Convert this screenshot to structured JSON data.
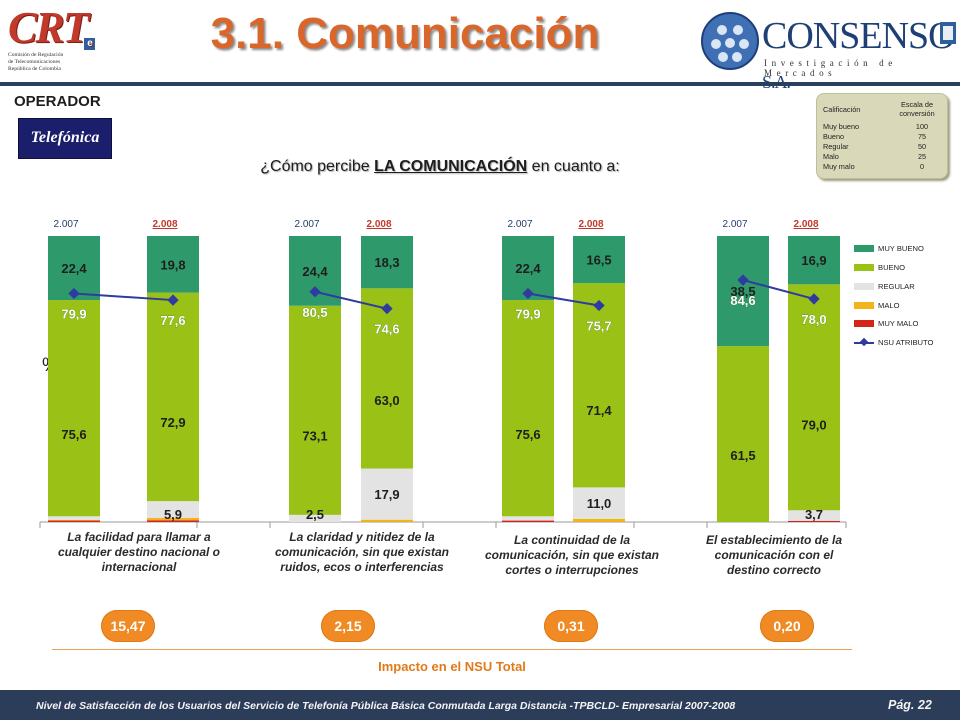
{
  "header": {
    "title": "3.1. Comunicación",
    "crt_logo": {
      "mark": "CRT",
      "mark_e": "e",
      "line1": "Comisión de Regulación",
      "line2": "de Telecomunicaciones",
      "line3": "República de Colombia"
    },
    "consenso_logo": {
      "name": "CONSENSO",
      "suffix": "S.A.",
      "tagline": "Investigación de Mercados"
    }
  },
  "operator": {
    "label": "OPERADOR",
    "logo_text": "Telefónica"
  },
  "scale_table": {
    "col1": "Calificación",
    "col2": "Escala de conversión",
    "rows": [
      {
        "label": "Muy bueno",
        "value": "100"
      },
      {
        "label": "Bueno",
        "value": "75"
      },
      {
        "label": "Regular",
        "value": "50"
      },
      {
        "label": "Malo",
        "value": "25"
      },
      {
        "label": "Muy malo",
        "value": "0"
      }
    ]
  },
  "question": {
    "prefix": "¿Cómo percibe ",
    "emphasis": "LA COMUNICACIÓN",
    "suffix": " en cuanto a:"
  },
  "axis_unit": "%",
  "colors": {
    "muy_bueno": "#2e9a6b",
    "bueno": "#9ac216",
    "regular": "#e3e3e3",
    "malo": "#f2b418",
    "muy_malo": "#d1261a",
    "nsu": "#2f3ba0",
    "impact": "#f08a25"
  },
  "chart_data": {
    "type": "bar",
    "stacked": true,
    "ylim": [
      0,
      100
    ],
    "groups": [
      {
        "category": "La facilidad para llamar a cualquier destino nacional o internacional",
        "years": [
          {
            "year": "2.007",
            "muy_bueno": 22.4,
            "bueno": 75.6,
            "regular": 1.3,
            "malo": 0.2,
            "muy_malo": 0.5,
            "nsu": 79.9,
            "labels": {
              "muy_bueno": "22,4",
              "bueno": "75,6",
              "regular": ""
            },
            "nsu_label": "79,9"
          },
          {
            "year": "2.008",
            "muy_bueno": 19.8,
            "bueno": 72.9,
            "regular": 5.9,
            "malo": 0.8,
            "muy_malo": 0.6,
            "nsu": 77.6,
            "labels": {
              "muy_bueno": "19,8",
              "bueno": "72,9",
              "regular": "5,9"
            },
            "nsu_label": "77,6"
          }
        ],
        "impact": "15,47"
      },
      {
        "category": "La claridad y nitidez de la comunicación, sin que existan ruidos, ecos o interferencias",
        "years": [
          {
            "year": "2.007",
            "muy_bueno": 24.4,
            "bueno": 73.1,
            "regular": 2.5,
            "malo": 0.0,
            "muy_malo": 0.0,
            "nsu": 80.5,
            "labels": {
              "muy_bueno": "24,4",
              "bueno": "73,1",
              "regular": "2,5"
            },
            "nsu_label": "80,5"
          },
          {
            "year": "2.008",
            "muy_bueno": 18.3,
            "bueno": 63.0,
            "regular": 17.9,
            "malo": 0.8,
            "muy_malo": 0.0,
            "nsu": 74.6,
            "labels": {
              "muy_bueno": "18,3",
              "bueno": "63,0",
              "regular": "17,9"
            },
            "nsu_label": "74,6"
          }
        ],
        "impact": "2,15"
      },
      {
        "category": "La continuidad de la comunicación, sin que existan cortes o interrupciones",
        "years": [
          {
            "year": "2.007",
            "muy_bueno": 22.4,
            "bueno": 75.6,
            "regular": 1.5,
            "malo": 0.0,
            "muy_malo": 0.5,
            "nsu": 79.9,
            "labels": {
              "muy_bueno": "22,4",
              "bueno": "75,6",
              "regular": ""
            },
            "nsu_label": "79,9"
          },
          {
            "year": "2.008",
            "muy_bueno": 16.5,
            "bueno": 71.4,
            "regular": 11.0,
            "malo": 1.1,
            "muy_malo": 0.0,
            "nsu": 75.7,
            "labels": {
              "muy_bueno": "16,5",
              "bueno": "71,4",
              "regular": "11,0"
            },
            "nsu_label": "75,7"
          }
        ],
        "impact": "0,31"
      },
      {
        "category": "El establecimiento de la comunicación con el destino correcto",
        "years": [
          {
            "year": "2.007",
            "muy_bueno": 38.5,
            "bueno": 61.5,
            "regular": 0.0,
            "malo": 0.0,
            "muy_malo": 0.0,
            "nsu": 84.6,
            "labels": {
              "muy_bueno": "38,5",
              "bueno": "61,5",
              "regular": ""
            },
            "nsu_label": "84,6"
          },
          {
            "year": "2.008",
            "muy_bueno": 16.9,
            "bueno": 79.0,
            "regular": 3.7,
            "malo": 0.0,
            "muy_malo": 0.4,
            "nsu": 78.0,
            "labels": {
              "muy_bueno": "16,9",
              "bueno": "79,0",
              "regular": "3,7"
            },
            "nsu_label": "78,0"
          }
        ],
        "impact": "0,20"
      }
    ],
    "legend": [
      {
        "key": "muy_bueno",
        "label": "MUY BUENO"
      },
      {
        "key": "bueno",
        "label": "BUENO"
      },
      {
        "key": "regular",
        "label": "REGULAR"
      },
      {
        "key": "malo",
        "label": "MALO"
      },
      {
        "key": "muy_malo",
        "label": "MUY MALO"
      },
      {
        "key": "nsu",
        "label": "NSU ATRIBUTO"
      }
    ],
    "legend_position": "right"
  },
  "impact_title": "Impacto en el NSU Total",
  "footer": {
    "text": "Nivel de Satisfacción de los Usuarios del Servicio de Telefonía Pública Básica Conmutada Larga Distancia -TPBCLD- Empresarial 2007-2008",
    "page": "Pág. 22"
  }
}
